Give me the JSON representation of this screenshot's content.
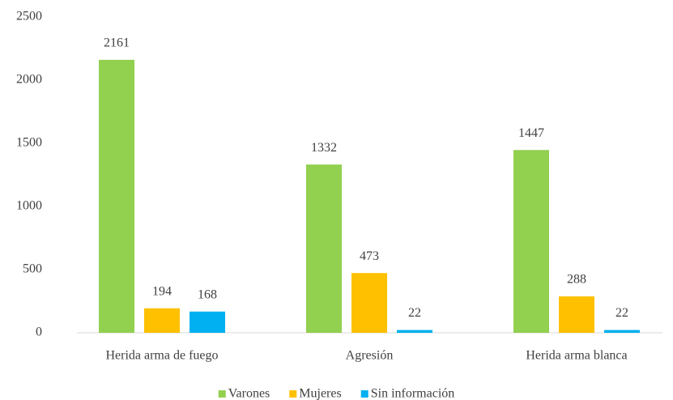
{
  "chart_data": {
    "type": "bar",
    "categories": [
      "Herida arma de fuego",
      "Agresión",
      "Herida arma blanca"
    ],
    "series": [
      {
        "name": "Varones",
        "color": "#92d050",
        "values": [
          2161,
          1332,
          1447
        ]
      },
      {
        "name": "Mujeres",
        "color": "#ffc000",
        "values": [
          194,
          473,
          288
        ]
      },
      {
        "name": "Sin información",
        "color": "#00b0f0",
        "values": [
          168,
          22,
          22
        ]
      }
    ],
    "ylim": [
      0,
      2500
    ],
    "yticks": [
      0,
      500,
      1000,
      1500,
      2000,
      2500
    ],
    "grid": false,
    "legend": "bottom"
  }
}
